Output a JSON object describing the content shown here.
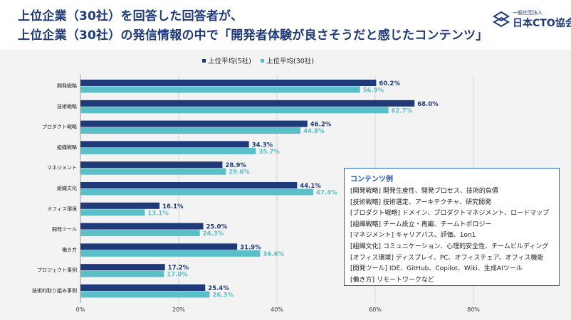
{
  "header": {
    "title_line1": "上位企業（30社）を回答した回答者が、",
    "title_line2": "上位企業（30社）の発信情報の中で「開発者体験が良さそうだと感じたコンテンツ」",
    "logo_small": "一般社団法人",
    "logo_main": "日本CTO協会"
  },
  "colors": {
    "series1": "#1f3a78",
    "series2": "#5bbfc7",
    "panel": "#f3f3f3",
    "title": "#1f3a78"
  },
  "chart_data": {
    "type": "bar",
    "orientation": "horizontal",
    "categories": [
      "開発戦略",
      "技術戦略",
      "プロダクト戦略",
      "組織戦略",
      "マネジメント",
      "組織文化",
      "オフィス環境",
      "開発ツール",
      "働き方",
      "プロジェクト事例",
      "技術的取り組み事例"
    ],
    "series": [
      {
        "name": "上位平均(5社)",
        "values": [
          60.2,
          68.0,
          46.2,
          34.3,
          28.9,
          44.1,
          16.1,
          25.0,
          31.9,
          17.2,
          25.4
        ]
      },
      {
        "name": "上位平均(30社)",
        "values": [
          56.9,
          62.7,
          44.8,
          35.7,
          29.6,
          47.4,
          13.1,
          24.3,
          36.6,
          17.0,
          26.3
        ]
      }
    ],
    "xlim": [
      0,
      80
    ],
    "xticks": [
      "0%",
      "20%",
      "40%",
      "60%",
      "80%"
    ],
    "value_suffix": "%",
    "grid": true,
    "legend_position": "top"
  },
  "content_box": {
    "title": "コンテンツ例",
    "lines": [
      "[開発戦略] 開発生産性、開発プロセス、技術的負債",
      "[技術戦略] 技術選定、アーキテクチャ、研究開発",
      "[プロダクト戦略] ドメイン、プロダクトマネジメント、ロードマップ",
      "[組織戦略] チーム設立・再編、チームトポロジー",
      "[マネジメント] キャリアパス、評価、1on1",
      "[組織文化] コミュニケーション、心理的安全性、チームビルディング",
      "[オフィス環境] ディスプレイ、PC、オフィスチェア、オフィス機能",
      "[開発ツール] IDE、GitHub、Copilot、Wiki、生成AIツール",
      "[働き方] リモートワークなど"
    ]
  }
}
